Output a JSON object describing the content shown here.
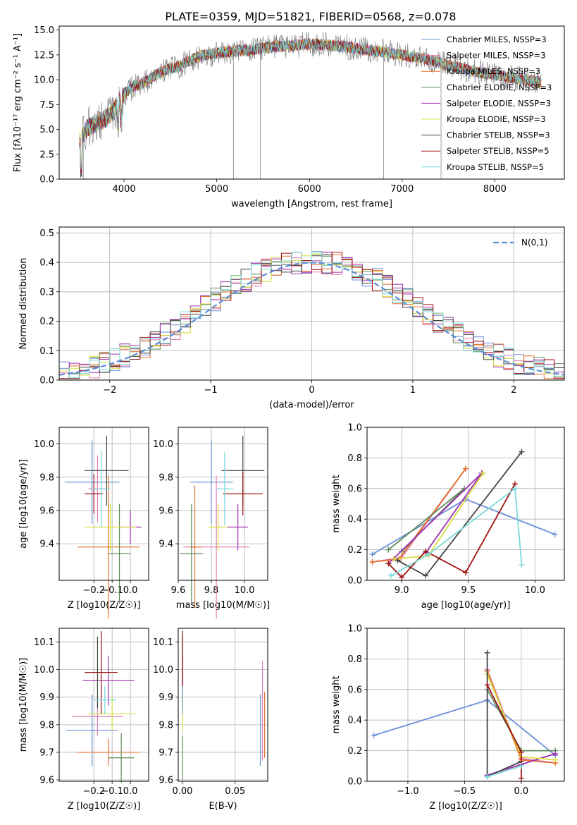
{
  "figure_title": "PLATE=0359, MJD=51821, FIBERID=0568, z=0.078",
  "colors": {
    "model_colors": [
      "#6a8fd8",
      "#e07fb6",
      "#e56f2a",
      "#5e8a5a",
      "#a030b0",
      "#d8e040",
      "#444444",
      "#a01010",
      "#7ad8d8"
    ],
    "data_spectrum": "#777777",
    "normal_curve": "#5b8cd6",
    "grid": "#b0b0b0"
  },
  "chart_data": [
    {
      "type": "line",
      "panel": "spectrum",
      "title": "",
      "xlabel": "wavelength [Angstrom, rest frame]",
      "ylabel": "Flux [fλ10⁻¹⁷ erg cm⁻² s⁻¹ A⁻¹]",
      "xlim": [
        3300,
        8750
      ],
      "ylim": [
        0,
        15.4
      ],
      "xticks": [
        4000,
        5000,
        6000,
        7000,
        8000
      ],
      "yticks": [
        0.0,
        2.5,
        5.0,
        7.5,
        10.0,
        12.5,
        15.0
      ],
      "grid": false,
      "legend_loc": "upper right",
      "legend": [
        "Chabrier MILES, NSSP=3",
        "Salpeter MILES, NSSP=3",
        "Kroupa MILES, NSSP=3",
        "Chabrier ELODIE, NSSP=3",
        "Salpeter ELODIE, NSSP=3",
        "Kroupa ELODIE, NSSP=3",
        "Chabrier STELIB, NSSP=3",
        "Salpeter STELIB, NSSP=5",
        "Kroupa STELIB, NSSP=5"
      ],
      "continuum_x": [
        3520,
        3600,
        3700,
        3800,
        3900,
        4000,
        4100,
        4200,
        4300,
        4400,
        4500,
        4600,
        4700,
        4800,
        4900,
        5000,
        5200,
        5400,
        5600,
        5800,
        6000,
        6200,
        6400,
        6600,
        6800,
        7000,
        7200,
        7400,
        7600,
        7800,
        8000,
        8200,
        8400,
        8500
      ],
      "continuum_y": [
        3.8,
        5.2,
        5.6,
        6.1,
        7.0,
        8.6,
        9.3,
        9.6,
        10.2,
        10.8,
        11.1,
        11.4,
        11.9,
        12.3,
        12.5,
        12.7,
        12.9,
        13.0,
        13.3,
        13.4,
        13.6,
        13.5,
        13.3,
        13.0,
        12.8,
        12.5,
        12.2,
        11.7,
        11.2,
        10.8,
        10.5,
        10.2,
        9.9,
        9.8
      ]
    },
    {
      "type": "bar",
      "panel": "residual_histogram",
      "xlabel": "(data-model)/error",
      "ylabel": "Normed distribution",
      "xlim": [
        -2.5,
        2.5
      ],
      "ylim": [
        0,
        0.52
      ],
      "xticks": [
        -2,
        -1,
        0,
        1,
        2
      ],
      "yticks": [
        0.0,
        0.1,
        0.2,
        0.3,
        0.4,
        0.5
      ],
      "grid": true,
      "legend": [
        "N(0,1)"
      ],
      "legend_loc": "upper right",
      "bin_width": 0.1,
      "normal_sigma": 1.0
    },
    {
      "type": "scatter",
      "panel": "age_vs_Z",
      "xlabel": "Z [log10(Z/Z☉)]",
      "ylabel": "age [log10(age/yr)]",
      "xlim": [
        -0.39,
        0.1
      ],
      "ylim": [
        9.18,
        10.1
      ],
      "xticks": [
        -0.2,
        -0.1,
        0.0
      ],
      "xticklabels": [
        "−0.2",
        "−0.1",
        "0.0"
      ],
      "yticks": [
        9.4,
        9.6,
        9.8,
        10.0
      ],
      "grid": true,
      "points": [
        {
          "x": -0.21,
          "y": 9.77,
          "xerr": 0.15,
          "yerr": 0.25,
          "color": 0
        },
        {
          "x": -0.18,
          "y": 9.73,
          "xerr": 0.05,
          "yerr": 0.2,
          "color": 1
        },
        {
          "x": -0.12,
          "y": 9.38,
          "xerr": 0.17,
          "yerr": 0.43,
          "color": 2
        },
        {
          "x": -0.06,
          "y": 9.34,
          "xerr": 0.06,
          "yerr": 0.3,
          "color": 3
        },
        {
          "x": 0.0,
          "y": 9.5,
          "xerr": 0.06,
          "yerr": 0.1,
          "color": 4
        },
        {
          "x": -0.11,
          "y": 9.5,
          "xerr": 0.14,
          "yerr": 0.14,
          "color": 5
        },
        {
          "x": -0.13,
          "y": 9.84,
          "xerr": 0.12,
          "yerr": 0.21,
          "color": 6
        },
        {
          "x": -0.2,
          "y": 9.7,
          "xerr": 0.05,
          "yerr": 0.12,
          "color": 7
        },
        {
          "x": -0.16,
          "y": 9.73,
          "xerr": 0.05,
          "yerr": 0.23,
          "color": 8
        }
      ]
    },
    {
      "type": "scatter",
      "panel": "age_vs_mass",
      "xlabel": "mass [log10(M/M☉)]",
      "ylabel": "",
      "xlim": [
        9.6,
        10.14
      ],
      "ylim": [
        9.18,
        10.1
      ],
      "xticks": [
        9.6,
        9.8,
        10.0
      ],
      "yticks": [
        9.4,
        9.6,
        9.8,
        10.0
      ],
      "grid": true,
      "points": [
        {
          "x": 9.8,
          "y": 9.77,
          "xerr": 0.13,
          "yerr": 0.25,
          "color": 0
        },
        {
          "x": 9.83,
          "y": 9.38,
          "xerr": 0.2,
          "yerr": 0.43,
          "color": 1
        },
        {
          "x": 9.7,
          "y": 9.38,
          "xerr": 0.04,
          "yerr": 0.37,
          "color": 2
        },
        {
          "x": 9.68,
          "y": 9.34,
          "xerr": 0.07,
          "yerr": 0.3,
          "color": 3
        },
        {
          "x": 9.96,
          "y": 9.5,
          "xerr": 0.06,
          "yerr": 0.14,
          "color": 4
        },
        {
          "x": 9.84,
          "y": 9.5,
          "xerr": 0.06,
          "yerr": 0.14,
          "color": 5
        },
        {
          "x": 9.99,
          "y": 9.84,
          "xerr": 0.13,
          "yerr": 0.21,
          "color": 6
        },
        {
          "x": 9.99,
          "y": 9.7,
          "xerr": 0.12,
          "yerr": 0.13,
          "color": 7
        },
        {
          "x": 9.88,
          "y": 9.73,
          "xerr": 0.05,
          "yerr": 0.22,
          "color": 8
        }
      ]
    },
    {
      "type": "line",
      "panel": "mass_weight_vs_age",
      "xlabel": "age [log10(age/yr)]",
      "ylabel": "mass weight",
      "xlim": [
        8.74,
        10.22
      ],
      "ylim": [
        0,
        1
      ],
      "xticks": [
        9.0,
        9.5,
        10.0
      ],
      "yticks": [
        0.0,
        0.2,
        0.4,
        0.6,
        0.8,
        1.0
      ],
      "grid": true,
      "series": [
        {
          "color": 0,
          "x": [
            8.78,
            9.48,
            10.15
          ],
          "y": [
            0.17,
            0.53,
            0.3
          ]
        },
        {
          "color": 1,
          "x": [
            8.78,
            9.0,
            9.48
          ],
          "y": [
            0.12,
            0.15,
            0.73
          ]
        },
        {
          "color": 2,
          "x": [
            8.78,
            8.98,
            9.48
          ],
          "y": [
            0.12,
            0.14,
            0.73
          ]
        },
        {
          "color": 3,
          "x": [
            8.9,
            9.47,
            9.0
          ],
          "y": [
            0.2,
            0.6,
            0.19
          ]
        },
        {
          "color": 4,
          "x": [
            8.9,
            9.6,
            9.18
          ],
          "y": [
            0.11,
            0.7,
            0.18
          ]
        },
        {
          "color": 5,
          "x": [
            8.94,
            9.2,
            9.61
          ],
          "y": [
            0.14,
            0.16,
            0.7
          ]
        },
        {
          "color": 6,
          "x": [
            8.97,
            9.18,
            9.9
          ],
          "y": [
            0.13,
            0.03,
            0.84
          ]
        },
        {
          "color": 7,
          "x": [
            8.9,
            9.0,
            9.18,
            9.48,
            9.85
          ],
          "y": [
            0.11,
            0.02,
            0.19,
            0.05,
            0.63
          ]
        },
        {
          "color": 8,
          "x": [
            8.92,
            9.2,
            9.85,
            9.9
          ],
          "y": [
            0.03,
            0.17,
            0.6,
            0.1
          ]
        }
      ]
    },
    {
      "type": "scatter",
      "panel": "mass_vs_Z",
      "xlabel": "Z [log10(Z/Z☉)]",
      "ylabel": "mass [log10(M/M☉)]",
      "xlim": [
        -0.39,
        0.1
      ],
      "ylim": [
        9.595,
        10.15
      ],
      "xticks": [
        -0.2,
        -0.1,
        0.0
      ],
      "xticklabels": [
        "−0.2",
        "−0.1",
        "0.0"
      ],
      "yticks": [
        9.6,
        9.7,
        9.8,
        9.9,
        10.0,
        10.1
      ],
      "grid": true,
      "points": [
        {
          "x": -0.21,
          "y": 9.78,
          "xerr": 0.14,
          "yerr": 0.13,
          "color": 0
        },
        {
          "x": -0.18,
          "y": 9.83,
          "xerr": 0.14,
          "yerr": 0.07,
          "color": 1
        },
        {
          "x": -0.12,
          "y": 9.7,
          "xerr": 0.17,
          "yerr": 0.05,
          "color": 2
        },
        {
          "x": -0.05,
          "y": 9.68,
          "xerr": 0.07,
          "yerr": 0.09,
          "color": 3
        },
        {
          "x": -0.12,
          "y": 9.96,
          "xerr": 0.14,
          "yerr": 0.09,
          "color": 4
        },
        {
          "x": -0.1,
          "y": 9.84,
          "xerr": 0.13,
          "yerr": 0.06,
          "color": 5
        },
        {
          "x": -0.18,
          "y": 9.99,
          "xerr": 0.07,
          "yerr": 0.13,
          "color": 6
        },
        {
          "x": -0.16,
          "y": 9.99,
          "xerr": 0.09,
          "yerr": 0.15,
          "color": 7
        },
        {
          "x": -0.14,
          "y": 9.89,
          "xerr": 0.06,
          "yerr": 0.05,
          "color": 8
        }
      ]
    },
    {
      "type": "scatter",
      "panel": "mass_vs_EBV",
      "xlabel": "E(B-V)",
      "ylabel": "",
      "xlim": [
        -0.004,
        0.081
      ],
      "ylim": [
        9.595,
        10.15
      ],
      "xticks": [
        0.0,
        0.05
      ],
      "xticklabels": [
        "0.00",
        "0.05"
      ],
      "yticks": [
        9.6,
        9.7,
        9.8,
        9.9,
        10.0,
        10.1
      ],
      "grid": true,
      "points": [
        {
          "x": 0.074,
          "y": 9.78,
          "xerr": 0.0,
          "yerr": 0.13,
          "color": 0
        },
        {
          "x": 0.076,
          "y": 9.85,
          "xerr": 0.0,
          "yerr": 0.18,
          "color": 1
        },
        {
          "x": 0.078,
          "y": 9.8,
          "xerr": 0.0,
          "yerr": 0.12,
          "color": 2
        },
        {
          "x": 0.0,
          "y": 9.68,
          "xerr": 0.0,
          "yerr": 0.08,
          "color": 3
        },
        {
          "x": 0.0,
          "y": 9.96,
          "xerr": 0.0,
          "yerr": 0.09,
          "color": 4
        },
        {
          "x": 0.0,
          "y": 9.84,
          "xerr": 0.0,
          "yerr": 0.06,
          "color": 5
        },
        {
          "x": 0.0,
          "y": 9.99,
          "xerr": 0.0,
          "yerr": 0.13,
          "color": 6
        },
        {
          "x": 0.0,
          "y": 9.99,
          "xerr": 0.0,
          "yerr": 0.15,
          "color": 7
        },
        {
          "x": 0.0,
          "y": 9.89,
          "xerr": 0.0,
          "yerr": 0.05,
          "color": 8
        }
      ]
    },
    {
      "type": "line",
      "panel": "mass_weight_vs_Z",
      "xlabel": "Z [log10(Z/Z☉)]",
      "ylabel": "mass weight",
      "xlim": [
        -1.36,
        0.38
      ],
      "ylim": [
        0,
        1
      ],
      "xticks": [
        -1.0,
        -0.5,
        0.0
      ],
      "xticklabels": [
        "−1.0",
        "−0.5",
        "0.0"
      ],
      "yticks": [
        0.0,
        0.2,
        0.4,
        0.6,
        0.8,
        1.0
      ],
      "grid": true,
      "series": [
        {
          "color": 0,
          "x": [
            -1.3,
            -0.3,
            0.3
          ],
          "y": [
            0.3,
            0.53,
            0.17
          ]
        },
        {
          "color": 1,
          "x": [
            -0.3,
            0.0,
            0.3
          ],
          "y": [
            0.73,
            0.15,
            0.12
          ]
        },
        {
          "color": 2,
          "x": [
            -0.3,
            0.0,
            0.3
          ],
          "y": [
            0.72,
            0.14,
            0.12
          ]
        },
        {
          "color": 3,
          "x": [
            -0.3,
            0.0,
            0.3
          ],
          "y": [
            0.6,
            0.2,
            0.2
          ]
        },
        {
          "color": 4,
          "x": [
            -0.3,
            0.0,
            0.3
          ],
          "y": [
            0.04,
            0.11,
            0.18
          ]
        },
        {
          "color": 5,
          "x": [
            -0.3,
            0.0,
            0.3
          ],
          "y": [
            0.7,
            0.16,
            0.14
          ]
        },
        {
          "color": 6,
          "x": [
            -0.3,
            -0.3,
            0.0
          ],
          "y": [
            0.84,
            0.03,
            0.13
          ]
        },
        {
          "color": 7,
          "x": [
            -0.3,
            0.0,
            0.0
          ],
          "y": [
            0.63,
            0.19,
            0.02
          ]
        },
        {
          "color": 8,
          "x": [
            -0.3,
            0.0,
            0.0
          ],
          "y": [
            0.03,
            0.1,
            0.1
          ]
        }
      ]
    }
  ]
}
